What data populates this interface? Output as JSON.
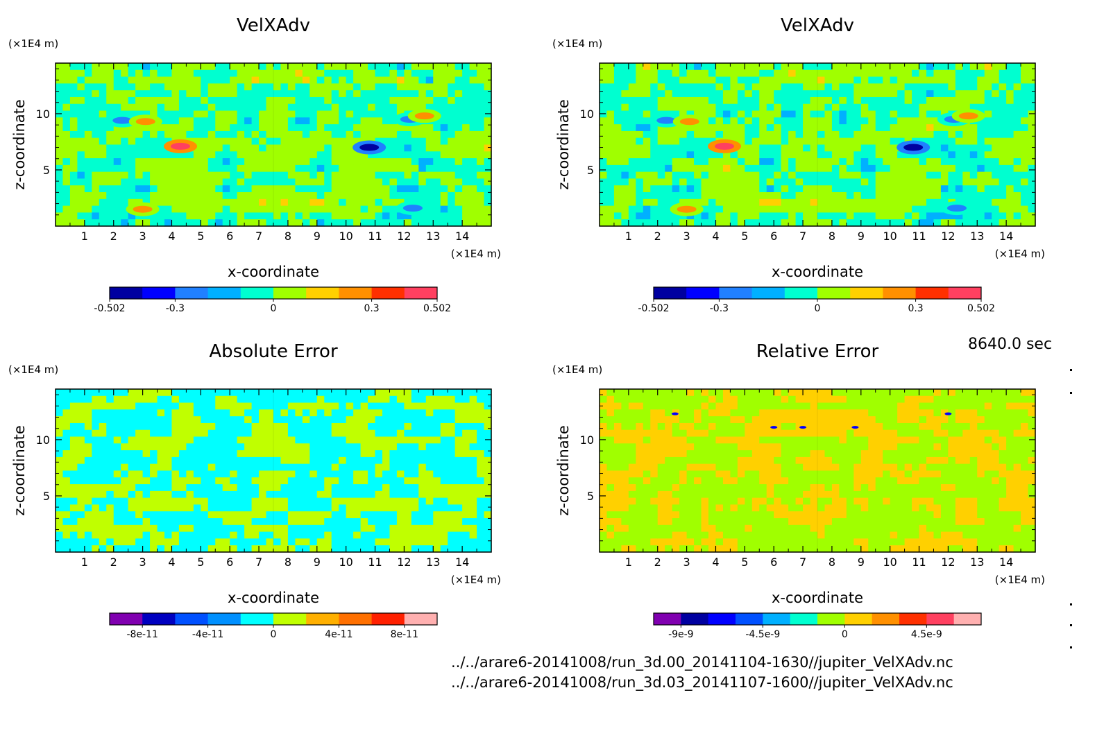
{
  "time_label": "8640.0 sec",
  "file_paths": [
    "../../arare6-20141008/run_3d.00_20141104-1630//jupiter_VelXAdv.nc",
    "../../arare6-20141008/run_3d.03_20141107-1600//jupiter_VelXAdv.nc"
  ],
  "chart_data": [
    {
      "type": "heatmap",
      "title": "VelXAdv",
      "xlabel": "x-coordinate",
      "ylabel": "z-coordinate",
      "x_unit": "(×1E4 m)",
      "y_unit": "(×1E4 m)",
      "xlim": [
        0,
        15
      ],
      "ylim": [
        0,
        14.5
      ],
      "x_ticks": [
        1,
        2,
        3,
        4,
        5,
        6,
        7,
        8,
        9,
        10,
        11,
        12,
        13,
        14
      ],
      "y_ticks": [
        5,
        10
      ],
      "colorbar": {
        "colors": [
          "#0000a0",
          "#0000ff",
          "#2080ff",
          "#00b0ff",
          "#00ffd0",
          "#a0ff00",
          "#ffd000",
          "#ff9000",
          "#ff3000",
          "#ff4060"
        ],
        "tick_labels": [
          "-0.502",
          "-0.3",
          "0",
          "0.3",
          "0.502"
        ],
        "tick_positions": [
          0,
          2,
          5,
          8,
          10
        ],
        "range": [
          -0.502,
          0.502
        ]
      },
      "field_palette": "velocity",
      "features": [
        {
          "x": 2.3,
          "z": 9.4,
          "value": -0.3
        },
        {
          "x": 3.1,
          "z": 9.3,
          "value": 0.25
        },
        {
          "x": 4.3,
          "z": 7.1,
          "value": 0.5
        },
        {
          "x": 3.0,
          "z": 1.5,
          "value": 0.28
        },
        {
          "x": 10.8,
          "z": 7.0,
          "value": -0.5
        },
        {
          "x": 12.2,
          "z": 9.5,
          "value": -0.28
        },
        {
          "x": 12.7,
          "z": 9.8,
          "value": 0.24
        },
        {
          "x": 12.3,
          "z": 1.6,
          "value": -0.3
        }
      ]
    },
    {
      "type": "heatmap",
      "title": "VelXAdv",
      "xlabel": "x-coordinate",
      "ylabel": "z-coordinate",
      "x_unit": "(×1E4 m)",
      "y_unit": "(×1E4 m)",
      "xlim": [
        0,
        15
      ],
      "ylim": [
        0,
        14.5
      ],
      "x_ticks": [
        1,
        2,
        3,
        4,
        5,
        6,
        7,
        8,
        9,
        10,
        11,
        12,
        13,
        14
      ],
      "y_ticks": [
        5,
        10
      ],
      "colorbar": {
        "colors": [
          "#0000a0",
          "#0000ff",
          "#2080ff",
          "#00b0ff",
          "#00ffd0",
          "#a0ff00",
          "#ffd000",
          "#ff9000",
          "#ff3000",
          "#ff4060"
        ],
        "tick_labels": [
          "-0.502",
          "-0.3",
          "0",
          "0.3",
          "0.502"
        ],
        "tick_positions": [
          0,
          2,
          5,
          8,
          10
        ],
        "range": [
          -0.502,
          0.502
        ]
      },
      "field_palette": "velocity",
      "features": [
        {
          "x": 2.3,
          "z": 9.4,
          "value": -0.3
        },
        {
          "x": 3.1,
          "z": 9.3,
          "value": 0.25
        },
        {
          "x": 4.3,
          "z": 7.1,
          "value": 0.5
        },
        {
          "x": 3.0,
          "z": 1.5,
          "value": 0.28
        },
        {
          "x": 10.8,
          "z": 7.0,
          "value": -0.5
        },
        {
          "x": 12.2,
          "z": 9.5,
          "value": -0.28
        },
        {
          "x": 12.7,
          "z": 9.8,
          "value": 0.24
        },
        {
          "x": 12.3,
          "z": 1.6,
          "value": -0.3
        }
      ]
    },
    {
      "type": "heatmap",
      "title": "Absolute Error",
      "xlabel": "x-coordinate",
      "ylabel": "z-coordinate",
      "x_unit": "(×1E4 m)",
      "y_unit": "(×1E4 m)",
      "xlim": [
        0,
        15
      ],
      "ylim": [
        0,
        14.5
      ],
      "x_ticks": [
        1,
        2,
        3,
        4,
        5,
        6,
        7,
        8,
        9,
        10,
        11,
        12,
        13,
        14
      ],
      "y_ticks": [
        5,
        10
      ],
      "colorbar": {
        "colors": [
          "#8000b0",
          "#0000c0",
          "#0050ff",
          "#0090ff",
          "#00ffff",
          "#c0ff00",
          "#ffb000",
          "#ff7000",
          "#ff2000",
          "#ffb0b0"
        ],
        "tick_labels": [
          "-8e-11",
          "-4e-11",
          "0",
          "4e-11",
          "8e-11"
        ],
        "tick_positions": [
          1,
          3,
          5,
          7,
          9
        ],
        "range": [
          -1e-10,
          1e-10
        ]
      },
      "field_palette": "abs_error",
      "features": []
    },
    {
      "type": "heatmap",
      "title": "Relative Error",
      "xlabel": "x-coordinate",
      "ylabel": "z-coordinate",
      "x_unit": "(×1E4 m)",
      "y_unit": "(×1E4 m)",
      "xlim": [
        0,
        15
      ],
      "ylim": [
        0,
        14.5
      ],
      "x_ticks": [
        1,
        2,
        3,
        4,
        5,
        6,
        7,
        8,
        9,
        10,
        11,
        12,
        13,
        14
      ],
      "y_ticks": [
        5,
        10
      ],
      "colorbar": {
        "colors": [
          "#8000b0",
          "#0000a0",
          "#0000ff",
          "#0050ff",
          "#00b0ff",
          "#00ffd0",
          "#a0ff00",
          "#ffd000",
          "#ff9000",
          "#ff3000",
          "#ff4060",
          "#ffb0b0"
        ],
        "tick_labels": [
          "-9e-9",
          "-4.5e-9",
          "0",
          "4.5e-9"
        ],
        "tick_positions": [
          1,
          4,
          7,
          10
        ],
        "range": [
          -1.2e-08,
          1.2e-08
        ]
      },
      "field_palette": "rel_error",
      "features": [
        {
          "x": 2.6,
          "z": 12.3,
          "value": -8e-09
        },
        {
          "x": 6.0,
          "z": 11.1,
          "value": -7e-09
        },
        {
          "x": 7.0,
          "z": 11.1,
          "value": -7e-09
        },
        {
          "x": 8.8,
          "z": 11.1,
          "value": -7e-09
        },
        {
          "x": 12.0,
          "z": 12.3,
          "value": -8e-09
        }
      ]
    }
  ]
}
